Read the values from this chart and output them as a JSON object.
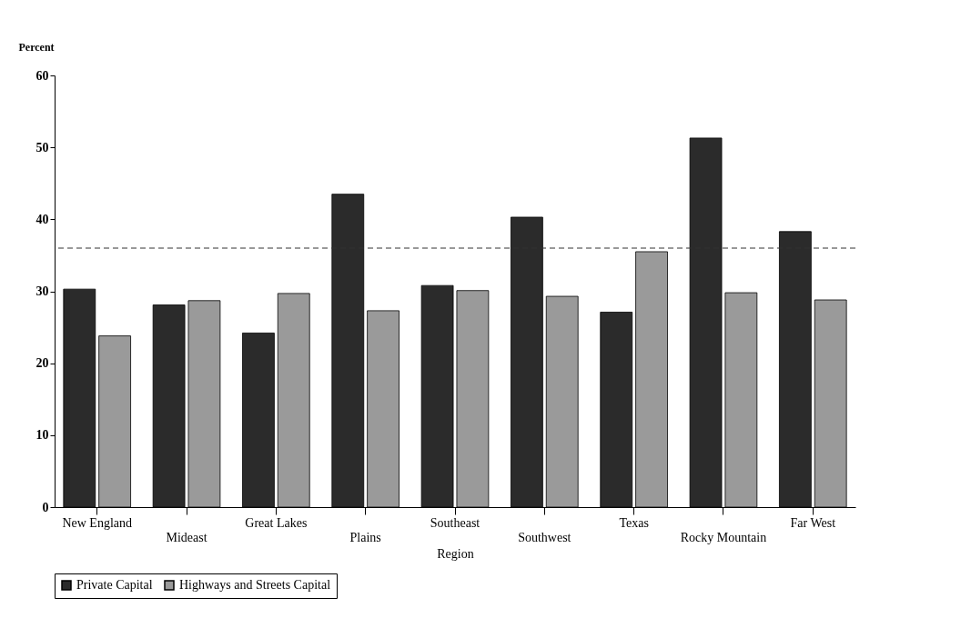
{
  "chart_data": {
    "type": "bar",
    "ylabel": "Percent",
    "xlabel": "Region",
    "categories": [
      "New England",
      "Mideast",
      "Great Lakes",
      "Plains",
      "Southeast",
      "Southwest",
      "Texas",
      "Rocky Mountain",
      "Far West"
    ],
    "series": [
      {
        "name": "Private Capital",
        "color": "#2b2b2b",
        "values": [
          30.3,
          28.1,
          24.2,
          43.5,
          30.8,
          40.3,
          27.1,
          51.3,
          38.3
        ]
      },
      {
        "name": "Highways and Streets Capital",
        "color": "#9a9a9a",
        "values": [
          23.8,
          28.7,
          29.7,
          27.3,
          30.1,
          29.3,
          35.5,
          29.8,
          28.8
        ]
      }
    ],
    "ylim": [
      0,
      60
    ],
    "yticks": [
      0,
      10,
      20,
      30,
      40,
      50,
      60
    ],
    "grid": false,
    "legend": "bottom",
    "ref_lines": [
      {
        "axis": "y",
        "value": 36,
        "line_style": "dashed",
        "color": "#333333"
      }
    ]
  }
}
